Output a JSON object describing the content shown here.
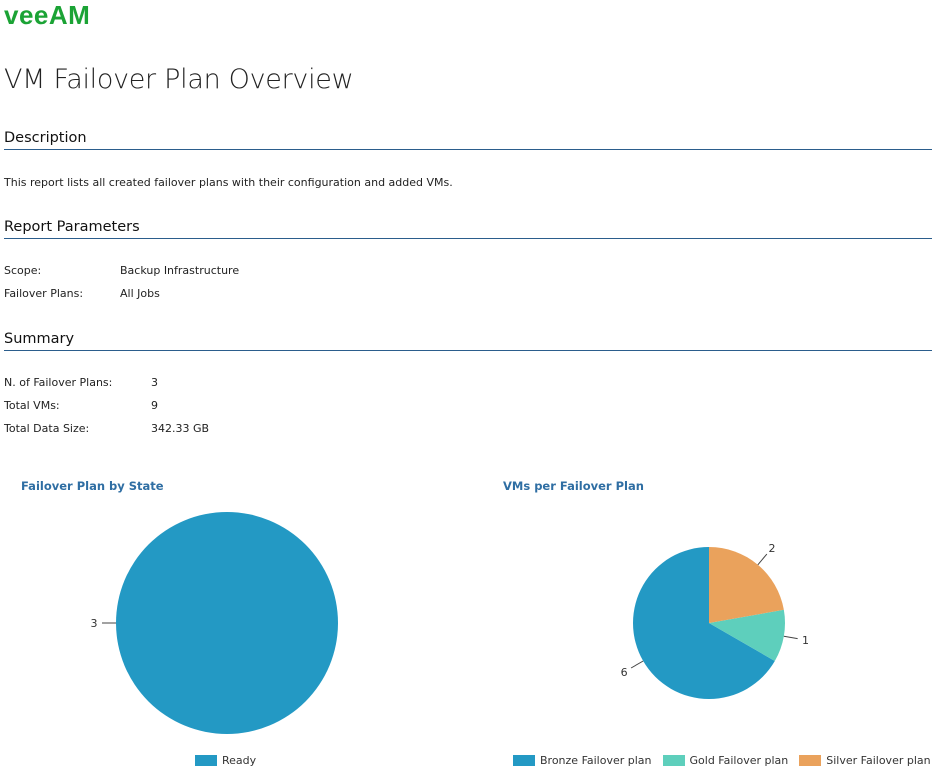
{
  "brand": {
    "logo_text": "veeAM",
    "color": "#1ba335"
  },
  "title": "VM Failover Plan Overview",
  "description": {
    "heading": "Description",
    "text": "This report lists all created failover plans with their configuration and added VMs."
  },
  "parameters": {
    "heading": "Report Parameters",
    "rows": [
      {
        "key": "Scope:",
        "value": "Backup Infrastructure"
      },
      {
        "key": "Failover Plans:",
        "value": "All Jobs"
      }
    ]
  },
  "summary": {
    "heading": "Summary",
    "rows": [
      {
        "key": "N. of Failover Plans:",
        "value": "3"
      },
      {
        "key": "Total VMs:",
        "value": "9"
      },
      {
        "key": "Total Data Size:",
        "value": "342.33 GB"
      }
    ]
  },
  "chart_data": [
    {
      "type": "pie",
      "title": "Failover Plan by State",
      "categories": [
        "Ready"
      ],
      "values": [
        3
      ],
      "colors": [
        "#2399c4"
      ],
      "labels": [
        "3"
      ],
      "legend": "bottom-center"
    },
    {
      "type": "pie",
      "title": "VMs per Failover Plan",
      "categories": [
        "Bronze Failover plan",
        "Gold Failover plan",
        "Silver Failover plan"
      ],
      "values": [
        6,
        1,
        2
      ],
      "colors": [
        "#2399c4",
        "#5ecfbc",
        "#eaa25c"
      ],
      "labels": [
        "6",
        "1",
        "2"
      ],
      "legend": "bottom-center"
    }
  ]
}
